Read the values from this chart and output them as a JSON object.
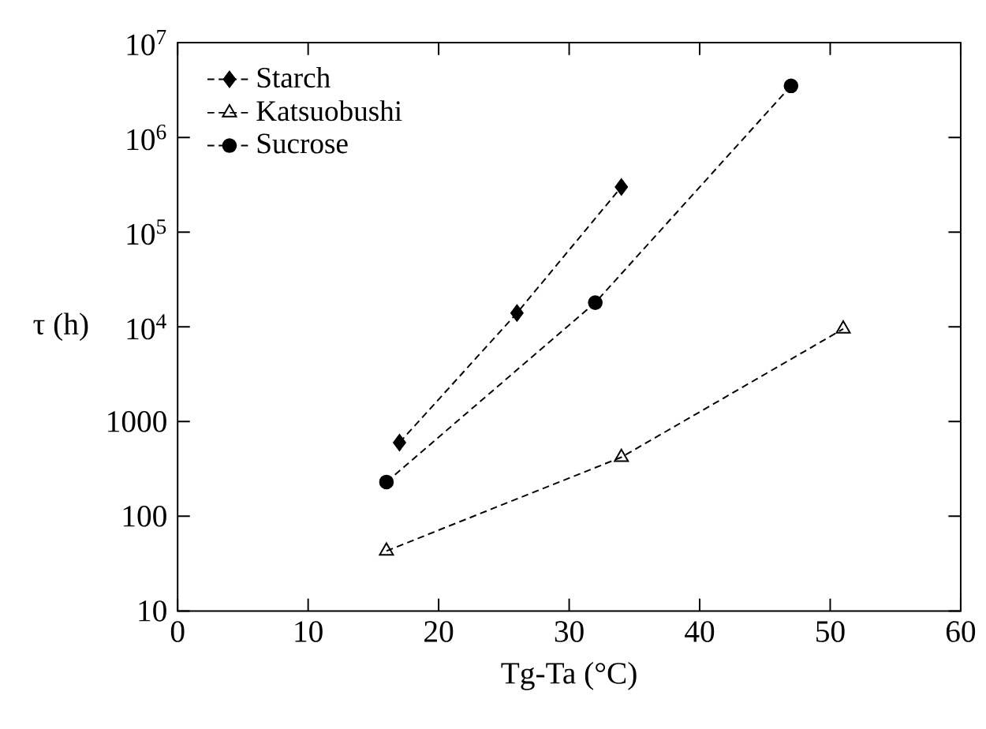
{
  "chart_data": {
    "type": "line",
    "xlabel": "Tg-Ta (°C)",
    "ylabel": "τ (h)",
    "log": "y",
    "line_style": "dashed",
    "legend": "top left",
    "grid": false,
    "xlim": [
      0,
      60
    ],
    "xticks": [
      0,
      10,
      20,
      30,
      40,
      50,
      60
    ],
    "ylim": [
      10,
      10000000
    ],
    "yticks": [
      10,
      100,
      1000,
      {
        "value": 10000,
        "label": "10$^{4}$"
      },
      {
        "value": 100000,
        "label": "10$^{5}$"
      },
      {
        "value": 1000000,
        "label": "10$^{6}$"
      },
      {
        "value": 10000000,
        "label": "10$^{7}$"
      }
    ],
    "series": [
      {
        "name": "Starch",
        "color": "#000000",
        "marker": "diamond",
        "x": [
          17,
          26,
          34
        ],
        "values": [
          600,
          14000,
          300000
        ]
      },
      {
        "name": "Katsuobushi",
        "color": "#000000",
        "marker": "triangle",
        "x": [
          16,
          34,
          51
        ],
        "values": [
          43,
          420,
          9500
        ]
      },
      {
        "name": "Sucrose",
        "color": "#000000",
        "marker": "circle",
        "x": [
          16,
          32,
          47
        ],
        "values": [
          230,
          18000,
          3500000
        ]
      }
    ]
  }
}
